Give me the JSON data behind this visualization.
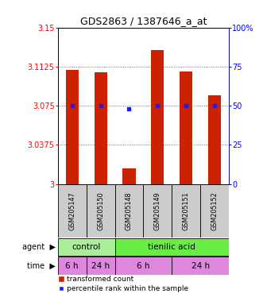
{
  "title": "GDS2863 / 1387646_a_at",
  "samples": [
    "GSM205147",
    "GSM205150",
    "GSM205148",
    "GSM205149",
    "GSM205151",
    "GSM205152"
  ],
  "bar_values": [
    3.109,
    3.107,
    3.015,
    3.128,
    3.108,
    3.085
  ],
  "bar_bottom": 3.0,
  "percentile_values": [
    3.075,
    3.075,
    3.072,
    3.075,
    3.075,
    3.075
  ],
  "ylim": [
    3.0,
    3.15
  ],
  "yticks": [
    3.0,
    3.0375,
    3.075,
    3.1125,
    3.15
  ],
  "ytick_labels": [
    "3",
    "3.0375",
    "3.075",
    "3.1125",
    "3.15"
  ],
  "y2lim": [
    0,
    100
  ],
  "y2ticks": [
    0,
    25,
    50,
    75,
    100
  ],
  "y2tick_labels": [
    "0",
    "25",
    "50",
    "75",
    "100%"
  ],
  "bar_color": "#cc2200",
  "dot_color": "#1a1aff",
  "agent_color_control": "#aaee99",
  "agent_color_tienilic": "#66ee44",
  "time_color": "#dd88dd",
  "grid_color": "#555555",
  "sample_box_color": "#cccccc",
  "legend_red_label": "transformed count",
  "legend_blue_label": "percentile rank within the sample",
  "title_fontsize": 9,
  "tick_fontsize": 7,
  "row_fontsize": 7.5,
  "legend_fontsize": 6.5
}
